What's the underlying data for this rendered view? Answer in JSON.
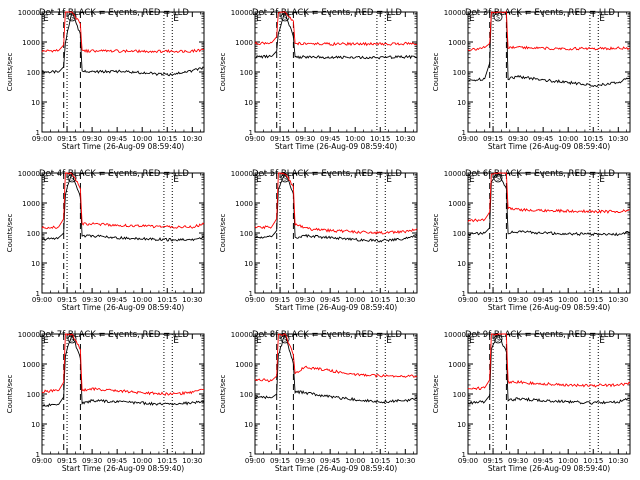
{
  "page": {
    "x_axis_label": "Start Time (26-Aug-09 08:59:40)",
    "y_axis_label": "Counts/sec"
  },
  "colors": {
    "events": "#000000",
    "lld": "#ff0000",
    "frame": "#000000"
  },
  "chart_data": [
    {
      "type": "line",
      "title": "Det 1f BLACK = Events, RED = LLD",
      "xlabel": "Start Time (26-Aug-09 08:59:40)",
      "ylabel": "Counts/sec",
      "y_scale": "log",
      "ylim": [
        1,
        10000
      ],
      "x_ticks": [
        "09:00",
        "09:15",
        "09:30",
        "09:45",
        "10:00",
        "10:15",
        "10:30"
      ],
      "y_ticks": [
        "1",
        "10",
        "100",
        "1000",
        "10000"
      ],
      "markers": {
        "E": [
          "09:00",
          "10:18"
        ],
        "S": [
          "09:18"
        ]
      },
      "vlines_dashed": [
        "09:13",
        "09:23"
      ],
      "vlines_dotted": [
        "09:15",
        "10:13",
        "10:18"
      ],
      "series": [
        {
          "name": "Events",
          "x": [
            "09:00",
            "09:10",
            "09:13",
            "09:14",
            "09:18",
            "09:23",
            "09:24",
            "09:30",
            "09:45",
            "10:00",
            "10:15",
            "10:30",
            "10:37"
          ],
          "values": [
            100,
            100,
            150,
            1000,
            10000,
            1800,
            105,
            100,
            105,
            95,
            80,
            110,
            140
          ]
        },
        {
          "name": "LLD",
          "x": [
            "09:00",
            "09:10",
            "09:13",
            "09:14",
            "09:18",
            "09:23",
            "09:24",
            "09:30",
            "09:45",
            "10:00",
            "10:15",
            "10:30",
            "10:37"
          ],
          "values": [
            500,
            520,
            800,
            10000,
            10000,
            4000,
            500,
            500,
            500,
            490,
            490,
            500,
            560
          ]
        }
      ]
    },
    {
      "type": "line",
      "title": "Det 2f BLACK = Events, RED = LLD",
      "xlabel": "Start Time (26-Aug-09 08:59:40)",
      "ylabel": "Counts/sec",
      "y_scale": "log",
      "ylim": [
        1,
        10000
      ],
      "x_ticks": [
        "09:00",
        "09:15",
        "09:30",
        "09:45",
        "10:00",
        "10:15",
        "10:30"
      ],
      "y_ticks": [
        "1",
        "10",
        "100",
        "1000",
        "10000"
      ],
      "markers": {
        "E": [
          "09:00",
          "10:18"
        ],
        "S": [
          "09:18"
        ]
      },
      "vlines_dashed": [
        "09:13",
        "09:23"
      ],
      "vlines_dotted": [
        "09:15",
        "10:13",
        "10:18"
      ],
      "series": [
        {
          "name": "Events",
          "x": [
            "09:00",
            "09:10",
            "09:13",
            "09:14",
            "09:18",
            "09:23",
            "09:24",
            "09:30",
            "09:45",
            "10:00",
            "10:15",
            "10:30",
            "10:37"
          ],
          "values": [
            320,
            330,
            500,
            2000,
            10000,
            1500,
            310,
            320,
            310,
            300,
            300,
            320,
            310
          ]
        },
        {
          "name": "LLD",
          "x": [
            "09:00",
            "09:10",
            "09:13",
            "09:14",
            "09:18",
            "09:23",
            "09:24",
            "09:30",
            "09:45",
            "10:00",
            "10:15",
            "10:30",
            "10:37"
          ],
          "values": [
            900,
            950,
            1500,
            10000,
            10000,
            5000,
            900,
            880,
            860,
            850,
            850,
            880,
            850
          ]
        }
      ]
    },
    {
      "type": "line",
      "title": "Det 3f BLACK = Events, RED = LLD",
      "xlabel": "Start Time (26-Aug-09 08:59:40)",
      "ylabel": "Counts/sec",
      "y_scale": "log",
      "ylim": [
        1,
        10000
      ],
      "x_ticks": [
        "09:00",
        "09:15",
        "09:30",
        "09:45",
        "10:00",
        "10:15",
        "10:30"
      ],
      "y_ticks": [
        "1",
        "10",
        "100",
        "1000",
        "10000"
      ],
      "markers": {
        "E": [
          "09:00",
          "10:18"
        ],
        "S": [
          "09:18"
        ]
      },
      "vlines_dashed": [
        "09:13",
        "09:23"
      ],
      "vlines_dotted": [
        "09:15",
        "10:13",
        "10:18"
      ],
      "series": [
        {
          "name": "Events",
          "x": [
            "09:00",
            "09:10",
            "09:13",
            "09:14",
            "09:18",
            "09:23",
            "09:24",
            "09:30",
            "09:45",
            "10:00",
            "10:15",
            "10:30",
            "10:37"
          ],
          "values": [
            50,
            60,
            200,
            10000,
            10000,
            10000,
            60,
            70,
            55,
            45,
            35,
            45,
            65
          ]
        },
        {
          "name": "LLD",
          "x": [
            "09:00",
            "09:10",
            "09:13",
            "09:14",
            "09:18",
            "09:23",
            "09:24",
            "09:30",
            "09:45",
            "10:00",
            "10:15",
            "10:30",
            "10:37"
          ],
          "values": [
            550,
            650,
            900,
            10000,
            10000,
            10000,
            650,
            650,
            620,
            600,
            600,
            620,
            620
          ]
        }
      ]
    },
    {
      "type": "line",
      "title": "Det 4f BLACK = Events, RED = LLD",
      "xlabel": "Start Time (26-Aug-09 08:59:40)",
      "ylabel": "Counts/sec",
      "y_scale": "log",
      "ylim": [
        1,
        10000
      ],
      "x_ticks": [
        "09:00",
        "09:15",
        "09:30",
        "09:45",
        "10:00",
        "10:15",
        "10:30"
      ],
      "y_ticks": [
        "1",
        "10",
        "100",
        "1000",
        "10000"
      ],
      "markers": {
        "E": [
          "09:00",
          "10:18"
        ],
        "S": [
          "09:18"
        ]
      },
      "vlines_dashed": [
        "09:13",
        "09:23"
      ],
      "vlines_dotted": [
        "09:15",
        "10:13",
        "10:18"
      ],
      "series": [
        {
          "name": "Events",
          "x": [
            "09:00",
            "09:10",
            "09:13",
            "09:14",
            "09:18",
            "09:23",
            "09:24",
            "09:30",
            "09:45",
            "10:00",
            "10:15",
            "10:30",
            "10:37"
          ],
          "values": [
            60,
            70,
            100,
            2000,
            10000,
            1500,
            80,
            80,
            70,
            65,
            60,
            60,
            75
          ]
        },
        {
          "name": "LLD",
          "x": [
            "09:00",
            "09:10",
            "09:13",
            "09:14",
            "09:18",
            "09:23",
            "09:24",
            "09:30",
            "09:45",
            "10:00",
            "10:15",
            "10:30",
            "10:37"
          ],
          "values": [
            150,
            160,
            300,
            10000,
            10000,
            3000,
            200,
            200,
            180,
            170,
            160,
            160,
            200
          ]
        }
      ]
    },
    {
      "type": "line",
      "title": "Det 5f BLACK = Events, RED = LLD",
      "xlabel": "Start Time (26-Aug-09 08:59:40)",
      "ylabel": "Counts/sec",
      "y_scale": "log",
      "ylim": [
        1,
        10000
      ],
      "x_ticks": [
        "09:00",
        "09:15",
        "09:30",
        "09:45",
        "10:00",
        "10:15",
        "10:30"
      ],
      "y_ticks": [
        "1",
        "10",
        "100",
        "1000",
        "10000"
      ],
      "markers": {
        "E": [
          "09:00",
          "10:18"
        ],
        "S": [
          "09:18"
        ]
      },
      "vlines_dashed": [
        "09:13",
        "09:23"
      ],
      "vlines_dotted": [
        "09:15",
        "10:13",
        "10:18"
      ],
      "series": [
        {
          "name": "Events",
          "x": [
            "09:00",
            "09:10",
            "09:13",
            "09:14",
            "09:18",
            "09:23",
            "09:24",
            "09:30",
            "09:45",
            "10:00",
            "10:15",
            "10:30",
            "10:37"
          ],
          "values": [
            70,
            75,
            120,
            3000,
            10000,
            2000,
            70,
            80,
            70,
            60,
            55,
            65,
            85
          ]
        },
        {
          "name": "LLD",
          "x": [
            "09:00",
            "09:10",
            "09:13",
            "09:14",
            "09:18",
            "09:23",
            "09:24",
            "09:30",
            "09:45",
            "10:00",
            "10:15",
            "10:30",
            "10:37"
          ],
          "values": [
            150,
            160,
            300,
            10000,
            10000,
            3500,
            200,
            140,
            120,
            110,
            100,
            110,
            140
          ]
        }
      ]
    },
    {
      "type": "line",
      "title": "Det 6f BLACK = Events, RED = LLD",
      "xlabel": "Start Time (26-Aug-09 08:59:40)",
      "ylabel": "Counts/sec",
      "y_scale": "log",
      "ylim": [
        1,
        10000
      ],
      "x_ticks": [
        "09:00",
        "09:15",
        "09:30",
        "09:45",
        "10:00",
        "10:15",
        "10:30"
      ],
      "y_ticks": [
        "1",
        "10",
        "100",
        "1000",
        "10000"
      ],
      "markers": {
        "E": [
          "09:00",
          "10:18"
        ],
        "S": [
          "09:18"
        ]
      },
      "vlines_dashed": [
        "09:13",
        "09:23"
      ],
      "vlines_dotted": [
        "09:15",
        "10:13",
        "10:18"
      ],
      "series": [
        {
          "name": "Events",
          "x": [
            "09:00",
            "09:10",
            "09:13",
            "09:14",
            "09:18",
            "09:23",
            "09:24",
            "09:30",
            "09:45",
            "10:00",
            "10:15",
            "10:30",
            "10:37"
          ],
          "values": [
            90,
            100,
            150,
            5000,
            10000,
            3000,
            100,
            110,
            100,
            95,
            90,
            90,
            110
          ]
        },
        {
          "name": "LLD",
          "x": [
            "09:00",
            "09:10",
            "09:13",
            "09:14",
            "09:18",
            "09:23",
            "09:24",
            "09:30",
            "09:45",
            "10:00",
            "10:15",
            "10:30",
            "10:37"
          ],
          "values": [
            250,
            280,
            500,
            10000,
            10000,
            10000,
            700,
            600,
            560,
            540,
            520,
            520,
            600
          ]
        }
      ]
    },
    {
      "type": "line",
      "title": "Det 7f BLACK = Events, RED = LLD",
      "xlabel": "Start Time (26-Aug-09 08:59:40)",
      "ylabel": "Counts/sec",
      "y_scale": "log",
      "ylim": [
        1,
        10000
      ],
      "x_ticks": [
        "09:00",
        "09:15",
        "09:30",
        "09:45",
        "10:00",
        "10:15",
        "10:30"
      ],
      "y_ticks": [
        "1",
        "10",
        "100",
        "1000",
        "10000"
      ],
      "markers": {
        "E": [
          "09:00",
          "10:18"
        ],
        "S": [
          "09:18"
        ]
      },
      "vlines_dashed": [
        "09:13",
        "09:23"
      ],
      "vlines_dotted": [
        "09:15",
        "10:13",
        "10:18"
      ],
      "series": [
        {
          "name": "Events",
          "x": [
            "09:00",
            "09:10",
            "09:13",
            "09:14",
            "09:18",
            "09:23",
            "09:24",
            "09:30",
            "09:45",
            "10:00",
            "10:15",
            "10:30",
            "10:37"
          ],
          "values": [
            40,
            45,
            80,
            2000,
            10000,
            1500,
            50,
            60,
            55,
            50,
            45,
            50,
            60
          ]
        },
        {
          "name": "LLD",
          "x": [
            "09:00",
            "09:10",
            "09:13",
            "09:14",
            "09:18",
            "09:23",
            "09:24",
            "09:30",
            "09:45",
            "10:00",
            "10:15",
            "10:30",
            "10:37"
          ],
          "values": [
            120,
            130,
            250,
            10000,
            10000,
            3000,
            130,
            150,
            130,
            110,
            100,
            110,
            140
          ]
        }
      ]
    },
    {
      "type": "line",
      "title": "Det 8f BLACK = Events, RED = LLD",
      "xlabel": "Start Time (26-Aug-09 08:59:40)",
      "ylabel": "Counts/sec",
      "y_scale": "log",
      "ylim": [
        1,
        10000
      ],
      "x_ticks": [
        "09:00",
        "09:15",
        "09:30",
        "09:45",
        "10:00",
        "10:15",
        "10:30"
      ],
      "y_ticks": [
        "1",
        "10",
        "100",
        "1000",
        "10000"
      ],
      "markers": {
        "E": [
          "09:00",
          "10:18"
        ],
        "S": [
          "09:18"
        ]
      },
      "vlines_dashed": [
        "09:13",
        "09:23"
      ],
      "vlines_dotted": [
        "09:15",
        "10:13",
        "10:18"
      ],
      "series": [
        {
          "name": "Events",
          "x": [
            "09:00",
            "09:10",
            "09:13",
            "09:14",
            "09:18",
            "09:23",
            "09:24",
            "09:30",
            "09:45",
            "10:00",
            "10:15",
            "10:30",
            "10:37"
          ],
          "values": [
            80,
            75,
            100,
            2000,
            10000,
            1000,
            120,
            110,
            80,
            65,
            55,
            60,
            75
          ]
        },
        {
          "name": "LLD",
          "x": [
            "09:00",
            "09:10",
            "09:13",
            "09:14",
            "09:18",
            "09:23",
            "09:24",
            "09:30",
            "09:45",
            "10:00",
            "10:15",
            "10:30",
            "10:37"
          ],
          "values": [
            300,
            280,
            400,
            10000,
            10000,
            2000,
            500,
            800,
            600,
            450,
            400,
            380,
            400
          ]
        }
      ]
    },
    {
      "type": "line",
      "title": "Det 9f BLACK = Events, RED = LLD",
      "xlabel": "Start Time (26-Aug-09 08:59:40)",
      "ylabel": "Counts/sec",
      "y_scale": "log",
      "ylim": [
        1,
        10000
      ],
      "x_ticks": [
        "09:00",
        "09:15",
        "09:30",
        "09:45",
        "10:00",
        "10:15",
        "10:30"
      ],
      "y_ticks": [
        "1",
        "10",
        "100",
        "1000",
        "10000"
      ],
      "markers": {
        "E": [
          "09:00",
          "10:18"
        ],
        "S": [
          "09:18"
        ]
      },
      "vlines_dashed": [
        "09:13",
        "09:23"
      ],
      "vlines_dotted": [
        "09:15",
        "10:13",
        "10:18"
      ],
      "series": [
        {
          "name": "Events",
          "x": [
            "09:00",
            "09:10",
            "09:13",
            "09:14",
            "09:18",
            "09:23",
            "09:24",
            "09:30",
            "09:45",
            "10:00",
            "10:15",
            "10:30",
            "10:37"
          ],
          "values": [
            50,
            55,
            90,
            3000,
            10000,
            2500,
            60,
            70,
            60,
            55,
            50,
            55,
            70
          ]
        },
        {
          "name": "LLD",
          "x": [
            "09:00",
            "09:10",
            "09:13",
            "09:14",
            "09:18",
            "09:23",
            "09:24",
            "09:30",
            "09:45",
            "10:00",
            "10:15",
            "10:30",
            "10:37"
          ],
          "values": [
            150,
            160,
            300,
            10000,
            10000,
            10000,
            250,
            250,
            220,
            200,
            190,
            200,
            230
          ]
        }
      ]
    }
  ]
}
